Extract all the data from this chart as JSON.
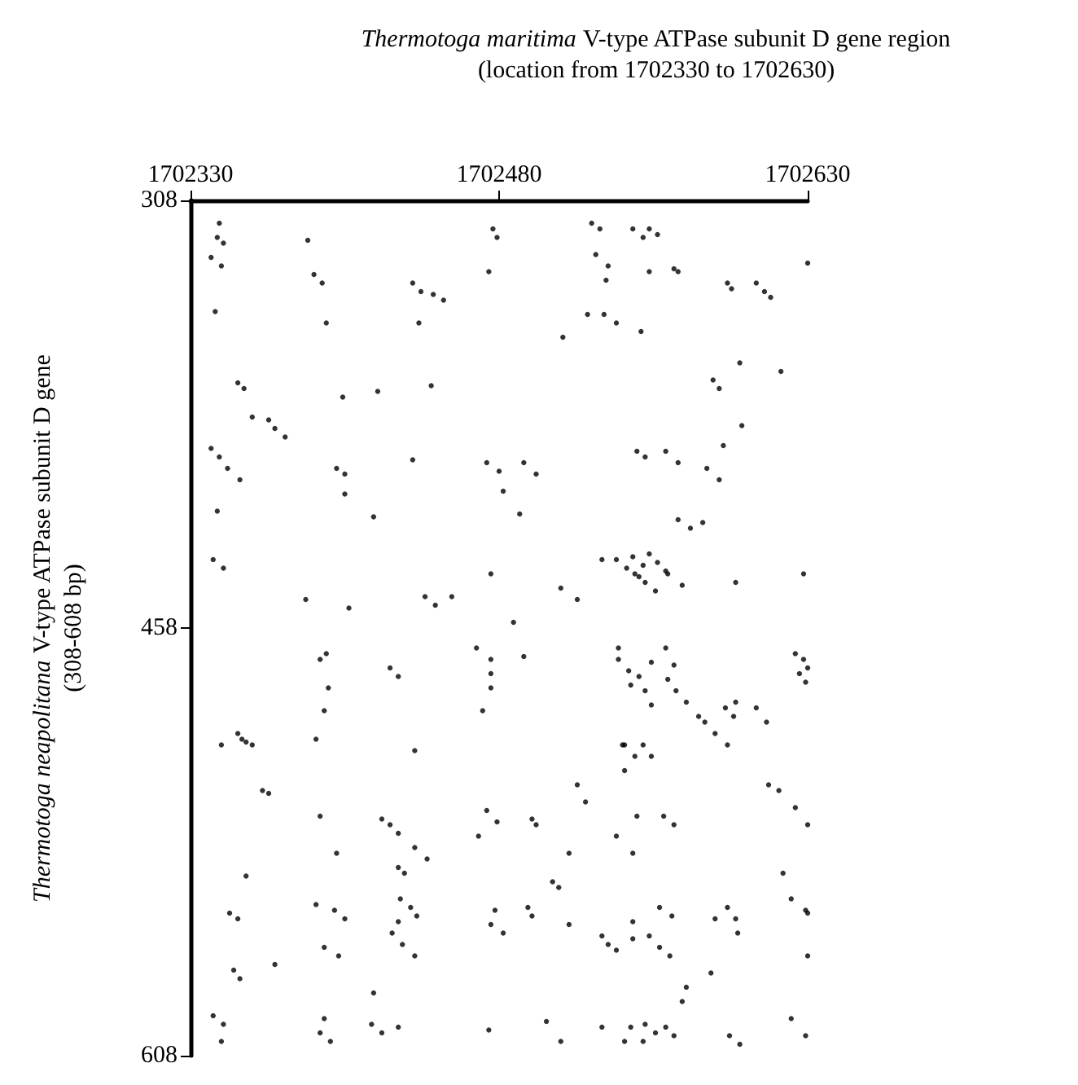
{
  "chart_data": {
    "type": "scatter",
    "title": "Thermotoga maritima V-type ATPase subunit D gene region",
    "subtitle": "(location from 1702330 to 1702630)",
    "ylabel": "Thermotoga neapolitana V-type ATPase subunit D gene\n(308-608 bp)",
    "xlim": [
      1702330,
      1702630
    ],
    "xticks": [
      1702330,
      1702480,
      1702630
    ],
    "ylim": [
      608,
      308
    ],
    "yticks": [
      308,
      458,
      608
    ],
    "grid": false,
    "marker": "circle",
    "color": "#000000",
    "x": [
      1702344,
      1702343,
      1702346,
      1702340,
      1702345,
      1702342,
      1702387,
      1702390,
      1702394,
      1702396,
      1702438,
      1702442,
      1702448,
      1702453,
      1702441,
      1702353,
      1702356,
      1702404,
      1702421,
      1702447,
      1702360,
      1702368,
      1702371,
      1702376,
      1702477,
      1702479,
      1702475,
      1702525,
      1702529,
      1702545,
      1702550,
      1702553,
      1702557,
      1702527,
      1702533,
      1702532,
      1702553,
      1702565,
      1702567,
      1702591,
      1702593,
      1702605,
      1702609,
      1702612,
      1702523,
      1702531,
      1702537,
      1702549,
      1702511,
      1702597,
      1702617,
      1702584,
      1702587,
      1702598,
      1702630,
      1702340,
      1702344,
      1702348,
      1702354,
      1702401,
      1702405,
      1702405,
      1702419,
      1702438,
      1702474,
      1702480,
      1702343,
      1702341,
      1702346,
      1702386,
      1702407,
      1702444,
      1702449,
      1702457,
      1702476,
      1702396,
      1702393,
      1702427,
      1702431,
      1702397,
      1702395,
      1702469,
      1702476,
      1702476,
      1702476,
      1702472,
      1702353,
      1702355,
      1702360,
      1702345,
      1702391,
      1702492,
      1702498,
      1702547,
      1702551,
      1702561,
      1702567,
      1702581,
      1702587,
      1702589,
      1702482,
      1702490,
      1702567,
      1702573,
      1702579,
      1702530,
      1702537,
      1702542,
      1702548,
      1702545,
      1702550,
      1702553,
      1702557,
      1702546,
      1702551,
      1702556,
      1702561,
      1702562,
      1702569,
      1702595,
      1702510,
      1702518,
      1702628,
      1702487,
      1702492,
      1702538,
      1702538,
      1702543,
      1702548,
      1702544,
      1702551,
      1702554,
      1702554,
      1702561,
      1702565,
      1702562,
      1702566,
      1702571,
      1702577,
      1702590,
      1702594,
      1702595,
      1702605,
      1702610,
      1702580,
      1702585,
      1702591,
      1702541,
      1702550,
      1702624,
      1702628,
      1702630,
      1702626,
      1702629,
      1702357,
      1702439,
      1702365,
      1702368,
      1702393,
      1702423,
      1702427,
      1702431,
      1702439,
      1702445,
      1702401,
      1702357,
      1702431,
      1702434,
      1702474,
      1702479,
      1702470,
      1702349,
      1702353,
      1702391,
      1702400,
      1702405,
      1702432,
      1702437,
      1702440,
      1702431,
      1702428,
      1702433,
      1702439,
      1702395,
      1702402,
      1702371,
      1702351,
      1702354,
      1702419,
      1702341,
      1702346,
      1702395,
      1702393,
      1702398,
      1702418,
      1702423,
      1702431,
      1702345,
      1702475,
      1702478,
      1702476,
      1702540,
      1702546,
      1702554,
      1702541,
      1702518,
      1702522,
      1702496,
      1702498,
      1702547,
      1702560,
      1702565,
      1702537,
      1702545,
      1702514,
      1702506,
      1702509,
      1702611,
      1702616,
      1702624,
      1702630,
      1702618,
      1702622,
      1702629,
      1702558,
      1702564,
      1702494,
      1702496,
      1702482,
      1702514,
      1702530,
      1702533,
      1702537,
      1702545,
      1702545,
      1702553,
      1702558,
      1702563,
      1702585,
      1702591,
      1702595,
      1702596,
      1702630,
      1702630,
      1702583,
      1702571,
      1702569,
      1702503,
      1702510,
      1702530,
      1702544,
      1702550,
      1702551,
      1702556,
      1702541,
      1702561,
      1702565,
      1702592,
      1702597,
      1702622,
      1702629
    ],
    "values": [
      316,
      321,
      323,
      328,
      331,
      347,
      322,
      334,
      337,
      351,
      337,
      340,
      341,
      343,
      351,
      372,
      374,
      377,
      375,
      373,
      384,
      385,
      388,
      391,
      318,
      321,
      333,
      316,
      318,
      318,
      321,
      318,
      320,
      327,
      331,
      336,
      333,
      332,
      333,
      337,
      339,
      337,
      340,
      342,
      348,
      348,
      351,
      354,
      356,
      365,
      368,
      371,
      374,
      387,
      330,
      395,
      398,
      402,
      406,
      402,
      404,
      411,
      419,
      399,
      400,
      403,
      417,
      434,
      437,
      448,
      451,
      447,
      450,
      447,
      439,
      467,
      469,
      472,
      475,
      479,
      487,
      465,
      469,
      474,
      479,
      487,
      495,
      497,
      499,
      499,
      497,
      400,
      404,
      396,
      398,
      396,
      400,
      402,
      406,
      394,
      410,
      418,
      420,
      423,
      421,
      434,
      434,
      437,
      440,
      433,
      436,
      432,
      435,
      439,
      442,
      445,
      438,
      439,
      443,
      442,
      444,
      448,
      439,
      456,
      468,
      465,
      469,
      473,
      475,
      478,
      480,
      470,
      485,
      465,
      471,
      476,
      480,
      484,
      489,
      486,
      489,
      484,
      486,
      491,
      491,
      495,
      499,
      499,
      499,
      467,
      469,
      472,
      474,
      477,
      498,
      501,
      515,
      516,
      524,
      525,
      527,
      530,
      535,
      539,
      537,
      545,
      542,
      544,
      522,
      526,
      531,
      558,
      560,
      555,
      557,
      560,
      553,
      556,
      559,
      561,
      565,
      569,
      573,
      570,
      573,
      576,
      578,
      581,
      586,
      594,
      597,
      595,
      600,
      603,
      597,
      600,
      598,
      603,
      599,
      557,
      562,
      499,
      503,
      503,
      508,
      513,
      519,
      525,
      527,
      524,
      524,
      527,
      531,
      537,
      537,
      547,
      549,
      513,
      515,
      521,
      527,
      544,
      553,
      557,
      556,
      559,
      556,
      559,
      565,
      562,
      566,
      569,
      571,
      561,
      567,
      566,
      570,
      573,
      560,
      556,
      560,
      565,
      558,
      573,
      579,
      584,
      589,
      596,
      603,
      598,
      598,
      603,
      597,
      600,
      603,
      598,
      601,
      601,
      604,
      595,
      601
    ]
  }
}
